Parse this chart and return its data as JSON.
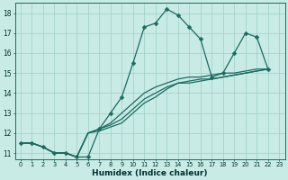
{
  "title": "",
  "xlabel": "Humidex (Indice chaleur)",
  "bg_color": "#c8ebe5",
  "grid_color": "#9ecfc8",
  "line_color": "#1a6b60",
  "xlim": [
    -0.5,
    23.5
  ],
  "ylim": [
    10.7,
    18.5
  ],
  "xticks": [
    0,
    1,
    2,
    3,
    4,
    5,
    6,
    7,
    8,
    9,
    10,
    11,
    12,
    13,
    14,
    15,
    16,
    17,
    18,
    19,
    20,
    21,
    22,
    23
  ],
  "yticks": [
    11,
    12,
    13,
    14,
    15,
    16,
    17,
    18
  ],
  "series_main": [
    11.5,
    11.5,
    11.3,
    11.0,
    11.0,
    10.8,
    10.8,
    12.2,
    13.0,
    13.8,
    15.5,
    17.3,
    17.5,
    18.2,
    17.9,
    17.3,
    16.7,
    14.8,
    15.0,
    16.0,
    17.0,
    16.8,
    15.2
  ],
  "series_line1": [
    11.5,
    11.5,
    11.3,
    11.0,
    11.0,
    10.8,
    12.0,
    12.1,
    12.3,
    12.5,
    13.0,
    13.5,
    13.8,
    14.2,
    14.5,
    14.5,
    14.6,
    14.7,
    14.8,
    14.9,
    15.0,
    15.1,
    15.2
  ],
  "series_line2": [
    11.5,
    11.5,
    11.3,
    11.0,
    11.0,
    10.8,
    12.0,
    12.2,
    12.4,
    12.7,
    13.2,
    13.7,
    14.0,
    14.3,
    14.5,
    14.6,
    14.7,
    14.7,
    14.8,
    14.9,
    15.0,
    15.1,
    15.2
  ],
  "series_line3": [
    11.5,
    11.5,
    11.3,
    11.0,
    11.0,
    10.8,
    12.0,
    12.2,
    12.5,
    13.0,
    13.5,
    14.0,
    14.3,
    14.5,
    14.7,
    14.8,
    14.8,
    14.9,
    15.0,
    15.0,
    15.1,
    15.2,
    15.2
  ]
}
